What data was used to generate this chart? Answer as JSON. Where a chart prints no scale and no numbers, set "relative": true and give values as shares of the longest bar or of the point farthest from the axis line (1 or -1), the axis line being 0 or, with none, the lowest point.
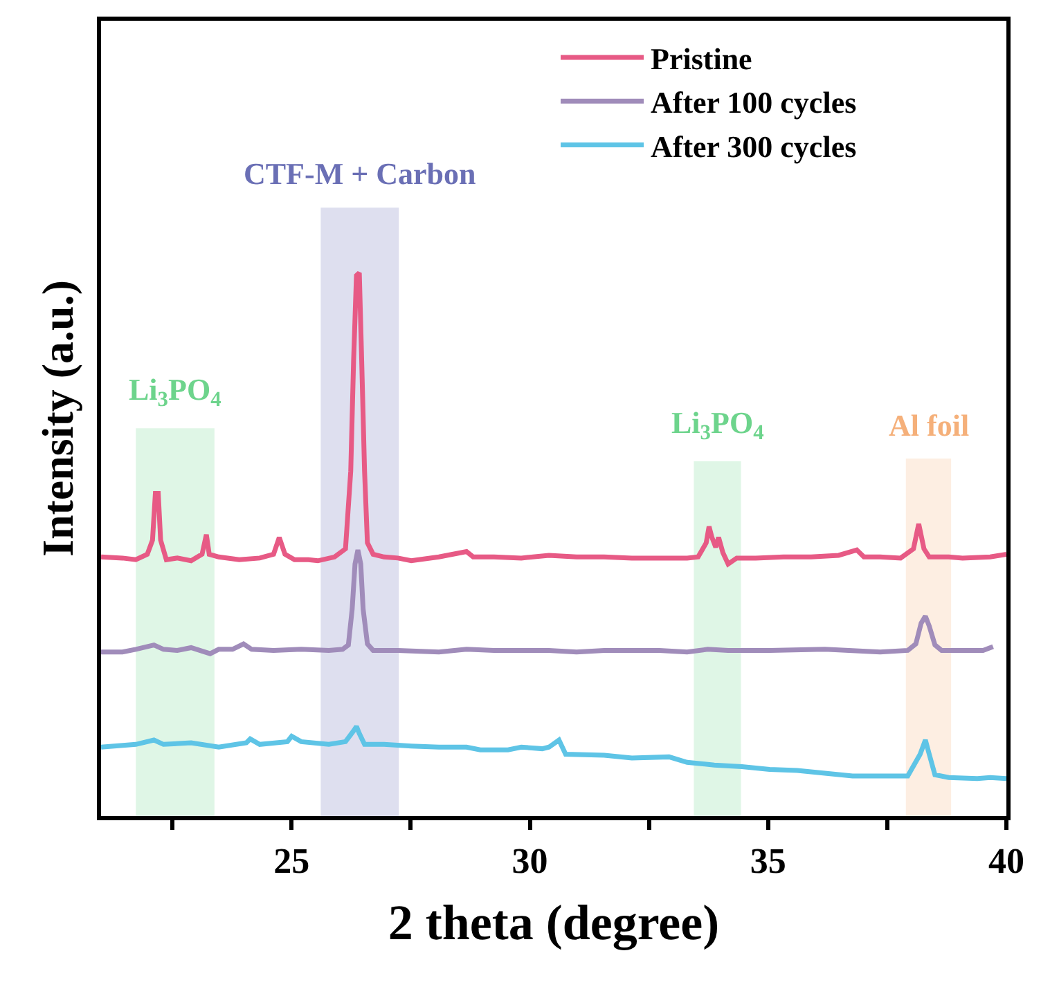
{
  "chart_data": {
    "type": "line",
    "relative": true,
    "xlabel": "2 theta (degree)",
    "ylabel": "Intensity (a.u.)",
    "xlim": [
      21,
      40
    ],
    "xticks": [
      {
        "value": 22.5,
        "label": null
      },
      25,
      {
        "value": 27.5,
        "label": null
      },
      30,
      {
        "value": 32.5,
        "label": null
      },
      35,
      {
        "value": 37.5,
        "label": null
      },
      40
    ],
    "tick_labels": "x",
    "grid": false,
    "legend": "top right",
    "marker": "none",
    "line_style": "solid",
    "series": [
      {
        "name": "Pristine",
        "color": "#e75a85",
        "x": [
          21.0,
          21.45,
          21.73,
          21.97,
          22.08,
          22.14,
          22.2,
          22.25,
          22.37,
          22.6,
          22.89,
          23.12,
          23.21,
          23.27,
          23.47,
          23.9,
          24.33,
          24.62,
          24.74,
          24.86,
          25.06,
          25.35,
          25.55,
          25.9,
          26.13,
          26.24,
          26.3,
          26.36,
          26.42,
          26.47,
          26.53,
          26.59,
          26.71,
          26.94,
          27.23,
          27.51,
          28.09,
          28.67,
          28.81,
          29.25,
          29.82,
          30.4,
          30.98,
          31.56,
          32.14,
          32.72,
          33.3,
          33.53,
          33.7,
          33.76,
          33.82,
          33.9,
          33.96,
          34.05,
          34.16,
          34.34,
          34.74,
          35.32,
          35.9,
          36.48,
          36.86,
          37.01,
          37.35,
          37.78,
          38.05,
          38.16,
          38.27,
          38.38,
          38.79,
          39.08,
          39.66,
          40.0
        ],
        "values": [
          0.477,
          0.475,
          0.472,
          0.482,
          0.508,
          0.594,
          0.594,
          0.508,
          0.472,
          0.475,
          0.47,
          0.482,
          0.518,
          0.482,
          0.477,
          0.472,
          0.475,
          0.482,
          0.513,
          0.482,
          0.472,
          0.472,
          0.47,
          0.477,
          0.492,
          0.635,
          0.838,
          0.995,
          1.0,
          0.838,
          0.635,
          0.503,
          0.482,
          0.477,
          0.475,
          0.47,
          0.477,
          0.487,
          0.477,
          0.477,
          0.475,
          0.48,
          0.477,
          0.477,
          0.475,
          0.475,
          0.475,
          0.477,
          0.503,
          0.533,
          0.513,
          0.495,
          0.513,
          0.485,
          0.464,
          0.475,
          0.475,
          0.477,
          0.477,
          0.48,
          0.49,
          0.477,
          0.477,
          0.475,
          0.492,
          0.538,
          0.492,
          0.477,
          0.477,
          0.475,
          0.477,
          0.482
        ]
      },
      {
        "name": "After 100 cycles",
        "color": "#a08cba",
        "x": [
          21.0,
          21.45,
          21.73,
          22.11,
          22.31,
          22.6,
          22.89,
          23.29,
          23.47,
          23.76,
          23.99,
          24.16,
          24.62,
          25.2,
          25.78,
          26.07,
          26.19,
          26.27,
          26.33,
          26.39,
          26.45,
          26.5,
          26.59,
          26.71,
          27.23,
          28.09,
          28.67,
          29.25,
          29.82,
          30.4,
          30.98,
          31.56,
          32.14,
          32.72,
          33.3,
          33.73,
          34.16,
          35.03,
          36.19,
          37.35,
          37.93,
          38.1,
          38.21,
          38.3,
          38.38,
          38.5,
          38.64,
          39.08,
          39.51,
          39.72
        ],
        "values": [
          0.302,
          0.302,
          0.307,
          0.315,
          0.307,
          0.305,
          0.31,
          0.299,
          0.307,
          0.307,
          0.317,
          0.307,
          0.305,
          0.307,
          0.305,
          0.307,
          0.315,
          0.381,
          0.464,
          0.49,
          0.464,
          0.381,
          0.317,
          0.305,
          0.305,
          0.302,
          0.307,
          0.305,
          0.305,
          0.305,
          0.302,
          0.305,
          0.305,
          0.305,
          0.302,
          0.307,
          0.305,
          0.305,
          0.307,
          0.302,
          0.305,
          0.317,
          0.355,
          0.368,
          0.35,
          0.315,
          0.305,
          0.305,
          0.305,
          0.312
        ]
      },
      {
        "name": "After 300 cycles",
        "color": "#5ec4e6",
        "x": [
          21.0,
          21.73,
          22.11,
          22.31,
          22.89,
          23.47,
          24.05,
          24.13,
          24.33,
          24.91,
          25.0,
          25.2,
          25.78,
          26.13,
          26.3,
          26.36,
          26.42,
          26.53,
          26.94,
          27.51,
          28.09,
          28.67,
          28.96,
          29.54,
          29.82,
          30.26,
          30.4,
          30.61,
          30.75,
          31.56,
          32.14,
          32.92,
          33.3,
          33.87,
          34.45,
          35.03,
          35.61,
          36.19,
          36.77,
          37.35,
          37.93,
          38.19,
          38.3,
          38.38,
          38.5,
          38.79,
          39.39,
          39.66,
          40.0
        ],
        "values": [
          0.127,
          0.132,
          0.14,
          0.132,
          0.135,
          0.127,
          0.135,
          0.142,
          0.132,
          0.137,
          0.147,
          0.137,
          0.132,
          0.137,
          0.157,
          0.165,
          0.152,
          0.132,
          0.132,
          0.129,
          0.127,
          0.127,
          0.122,
          0.122,
          0.127,
          0.124,
          0.127,
          0.14,
          0.114,
          0.112,
          0.107,
          0.109,
          0.099,
          0.094,
          0.091,
          0.086,
          0.084,
          0.079,
          0.074,
          0.074,
          0.074,
          0.114,
          0.14,
          0.114,
          0.076,
          0.071,
          0.069,
          0.071,
          0.069
        ]
      }
    ],
    "bands": [
      {
        "axis": "x",
        "from": 21.73,
        "to": 23.38,
        "label": "Li$_{3}$PO$_{4}$",
        "color": "#6dd48c"
      },
      {
        "axis": "x",
        "from": 25.61,
        "to": 27.25,
        "label": "CTF-M + Carbon",
        "color": "#6a6fb5"
      },
      {
        "axis": "x",
        "from": 33.44,
        "to": 34.43,
        "label": "Li$_{3}$PO$_{4}$",
        "color": "#6dd48c"
      },
      {
        "axis": "x",
        "from": 37.89,
        "to": 38.84,
        "label": "Al foil",
        "color": "#f5b07a"
      }
    ]
  }
}
